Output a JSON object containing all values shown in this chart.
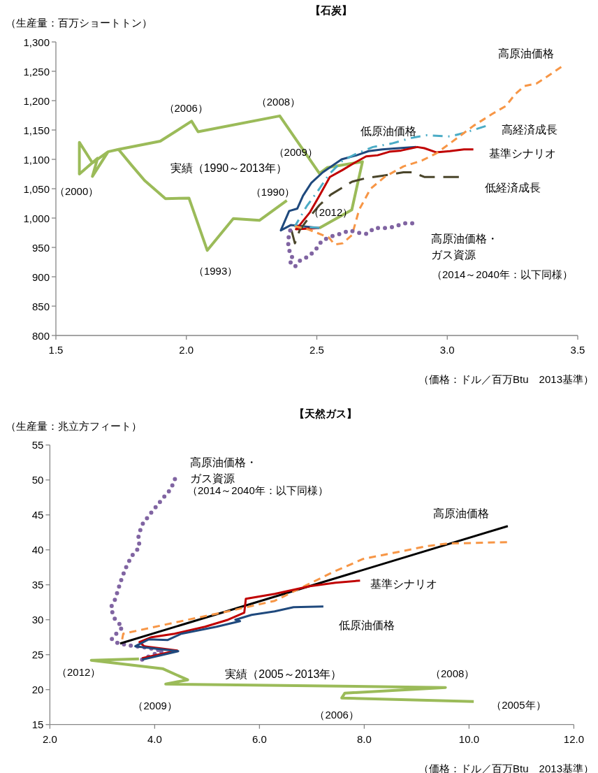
{
  "chart_data": [
    {
      "type": "line",
      "title": "【石炭】",
      "ylabel": "（生産量：百万ショートトン）",
      "xlabel": "（価格：ドル／百万Btu　2013基準）",
      "xlim": [
        1.5,
        3.5
      ],
      "xticks": [
        {
          "value": 1.5,
          "label": "1.5"
        },
        {
          "value": 2,
          "label": "2.0"
        },
        {
          "value": 2.5,
          "label": "2.5"
        },
        {
          "value": 3,
          "label": "3.0"
        },
        {
          "value": 3.5,
          "label": "3.5"
        }
      ],
      "ylim": [
        800,
        1300
      ],
      "yticks": [
        800,
        850,
        900,
        950,
        {
          "value": 1000,
          "label": "1,000"
        },
        {
          "value": 1050,
          "label": "1,050"
        },
        {
          "value": 1100,
          "label": "1,100"
        },
        {
          "value": 1150,
          "label": "1,150"
        },
        {
          "value": 1200,
          "label": "1,200"
        },
        {
          "value": 1250,
          "label": "1,250"
        },
        {
          "value": 1300,
          "label": "1,300"
        }
      ],
      "series": [
        {
          "name": "実績（1990～2013年）",
          "color": "#9bbb59",
          "line_style": "solid",
          "x": [
            2.385,
            2.28,
            2.18,
            2.08,
            2.01,
            1.92,
            1.84,
            1.79,
            1.74,
            1.7,
            1.64,
            1.66,
            1.59,
            1.59,
            1.64,
            1.7,
            1.74,
            1.9,
            2.02,
            2.045,
            2.358,
            2.51,
            2.54,
            2.675,
            2.634,
            2.51
          ],
          "values": [
            1030,
            996,
            999,
            945,
            1034,
            1033,
            1064,
            1090,
            1117,
            1113,
            1071,
            1102,
            1075,
            1129,
            1094,
            1113,
            1117,
            1131,
            1165,
            1147,
            1174,
            1076,
            1086,
            1096,
            1014,
            983
          ]
        },
        {
          "name": "低原油価格",
          "color": "#1f497d",
          "line_style": "solid",
          "x": [
            2.51,
            2.4,
            2.362,
            2.394,
            2.425,
            2.447,
            2.479,
            2.523,
            2.595,
            2.653,
            2.698,
            2.751,
            2.814,
            2.881
          ],
          "values": [
            983,
            988,
            979,
            1012,
            1016,
            1038,
            1060,
            1078,
            1100,
            1107,
            1114,
            1117,
            1119,
            1121
          ]
        },
        {
          "name": "基準シナリオ",
          "color": "#c00000",
          "line_style": "solid",
          "x": [
            2.51,
            2.42,
            2.438,
            2.474,
            2.51,
            2.55,
            2.599,
            2.644,
            2.689,
            2.733,
            2.778,
            2.823,
            2.885,
            2.912,
            2.957,
            3.01,
            3.064,
            3.1
          ],
          "values": [
            983,
            981,
            990,
            1010,
            1038,
            1070,
            1082,
            1094,
            1105,
            1107,
            1113,
            1115,
            1121,
            1119,
            1112,
            1114,
            1117,
            1117
          ]
        },
        {
          "name": "高経済成長",
          "color": "#4bacc6",
          "line_style": "dashdot",
          "x": [
            2.51,
            2.416,
            2.461,
            2.51,
            2.546,
            2.599,
            2.653,
            2.715,
            2.787,
            2.867,
            2.921,
            3.01,
            3.064,
            3.149
          ],
          "values": [
            983,
            986,
            1020,
            1050,
            1074,
            1098,
            1110,
            1121,
            1127,
            1137,
            1141,
            1139,
            1145,
            1157
          ]
        },
        {
          "name": "低経済成長",
          "color": "#4a452a",
          "line_style": "longdash",
          "x": [
            2.403,
            2.416,
            2.434,
            2.465,
            2.51,
            2.554,
            2.635,
            2.689,
            2.751,
            2.832,
            2.867,
            2.912,
            2.957,
            3.046
          ],
          "values": [
            979,
            957,
            979,
            998,
            1022,
            1040,
            1062,
            1068,
            1072,
            1078,
            1078,
            1070,
            1070,
            1070
          ]
        },
        {
          "name": "高原油価格",
          "color": "#f79646",
          "line_style": "dashed",
          "x": [
            2.416,
            2.465,
            2.546,
            2.568,
            2.599,
            2.635,
            2.662,
            2.706,
            2.76,
            2.832,
            2.903,
            2.957,
            3.028,
            3.1,
            3.171,
            3.225,
            3.26,
            3.296,
            3.341,
            3.386,
            3.439
          ],
          "values": [
            986,
            981,
            967,
            955,
            957,
            971,
            1014,
            1050,
            1070,
            1088,
            1098,
            1110,
            1133,
            1157,
            1177,
            1191,
            1211,
            1225,
            1229,
            1242,
            1258
          ]
        },
        {
          "name": "高原油価格・ガス資源",
          "color": "#8064a2",
          "line_style": "dotted",
          "x": [
            2.398,
            2.389,
            2.394,
            2.407,
            2.394,
            2.416,
            2.434,
            2.47,
            2.497,
            2.519,
            2.55,
            2.59,
            2.626,
            2.657,
            2.693,
            2.72,
            2.76,
            2.796,
            2.832,
            2.867
          ],
          "values": [
            979,
            961,
            945,
            935,
            927,
            917,
            927,
            935,
            947,
            961,
            968,
            973,
            979,
            975,
            973,
            983,
            983,
            985,
            991,
            991
          ]
        }
      ],
      "annotations": [
        "（2014～2040年：以下同様）",
        {
          "text": "（2000）",
          "x": 1.59,
          "y": 1075
        },
        {
          "text": "（2006）",
          "x": 2.02,
          "y": 1165
        },
        {
          "text": "（2008）",
          "x": 2.358,
          "y": 1174
        },
        {
          "text": "（2009）",
          "x": 2.51,
          "y": 1076
        },
        {
          "text": "（1990）",
          "x": 2.385,
          "y": 1030
        },
        {
          "text": "（1993）",
          "x": 2.08,
          "y": 945
        },
        {
          "text": "（2012）",
          "x": 2.634,
          "y": 1014
        }
      ]
    },
    {
      "type": "line",
      "title": "【天然ガス】",
      "ylabel": "（生産量：兆立方フィート）",
      "xlabel": "（価格：ドル／百万Btu　2013基準）",
      "xlim": [
        2,
        12
      ],
      "xticks": [
        {
          "value": 2,
          "label": "2.0"
        },
        {
          "value": 4,
          "label": "4.0"
        },
        {
          "value": 6,
          "label": "6.0"
        },
        {
          "value": 8,
          "label": "8.0"
        },
        {
          "value": 10,
          "label": "10.0"
        },
        {
          "value": 12,
          "label": "12.0"
        }
      ],
      "ylim": [
        15,
        55
      ],
      "yticks": [
        15,
        20,
        25,
        30,
        35,
        40,
        45,
        50,
        55
      ],
      "series": [
        {
          "name": "実績（2005～2013年）",
          "color": "#9bbb59",
          "line_style": "solid",
          "x": [
            10.09,
            7.57,
            7.63,
            9.55,
            4.21,
            4.63,
            4.15,
            2.79,
            3.7
          ],
          "values": [
            18.3,
            18.8,
            19.5,
            20.3,
            20.8,
            21.4,
            23.0,
            24.2,
            24.4
          ]
        },
        {
          "name": "高原油価格・ガス資源",
          "color": "#8064a2",
          "line_style": "dotted",
          "x": [
            3.76,
            3.96,
            4.16,
            3.98,
            3.76,
            3.54,
            3.31,
            3.18,
            3.31,
            3.39,
            3.24,
            3.16,
            3.25,
            3.31,
            3.38,
            3.46,
            3.56,
            3.71,
            3.69,
            3.76,
            3.89,
            4.03,
            4.17,
            4.31,
            4.39
          ],
          "values": [
            24.3,
            25.0,
            25.5,
            25.8,
            26.1,
            26.3,
            26.6,
            27.2,
            28.4,
            28.9,
            30.1,
            31.7,
            33.0,
            34.5,
            36.1,
            37.6,
            39.1,
            40.4,
            42.0,
            43.6,
            44.9,
            46.2,
            47.5,
            48.7,
            50.2
          ]
        },
        {
          "color": "#000000",
          "line_style": "solid",
          "x": [
            3.34,
            10.74
          ],
          "values": [
            26.6,
            43.4
          ]
        },
        {
          "name": "高原油価格",
          "color": "#f79646",
          "line_style": "dashed",
          "x": [
            3.38,
            3.4,
            4.51,
            5.4,
            6.29,
            7.4,
            7.98,
            8.65,
            9.18,
            9.58,
            10.74
          ],
          "values": [
            27.2,
            28.0,
            29.8,
            31.2,
            32.7,
            36.8,
            38.7,
            39.7,
            40.5,
            40.9,
            41.1
          ]
        },
        {
          "name": "基準シナリオ",
          "color": "#c00000",
          "line_style": "solid",
          "x": [
            3.76,
            4.43,
            3.8,
            3.71,
            3.94,
            4.38,
            4.96,
            5.4,
            5.71,
            5.74,
            6.29,
            6.96,
            7.45,
            7.92
          ],
          "values": [
            24.5,
            25.6,
            26.2,
            26.8,
            27.5,
            28.0,
            29.0,
            30.0,
            31.0,
            33.0,
            33.7,
            34.8,
            35.3,
            35.6
          ]
        },
        {
          "name": "低原油価格",
          "color": "#1f497d",
          "line_style": "solid",
          "x": [
            3.76,
            4.45,
            3.63,
            3.89,
            4.25,
            4.51,
            5.18,
            5.63,
            5.54,
            5.85,
            6.29,
            6.65,
            7.22
          ],
          "values": [
            24.3,
            25.5,
            26.2,
            27.2,
            27.1,
            28.0,
            29.0,
            29.8,
            30.0,
            30.7,
            31.2,
            31.8,
            31.9
          ]
        }
      ],
      "annotations": [
        "（2014～2040年：以下同様）",
        {
          "text": "（2012）",
          "x": 2.79,
          "y": 24.2
        },
        {
          "text": "（2009）",
          "x": 4.21,
          "y": 20.8
        },
        {
          "text": "（2006）",
          "x": 7.57,
          "y": 18.3
        },
        {
          "text": "（2008）",
          "x": 9.55,
          "y": 20.3
        },
        {
          "text": "（2005年）",
          "x": 10.09,
          "y": 18.3
        }
      ]
    }
  ]
}
